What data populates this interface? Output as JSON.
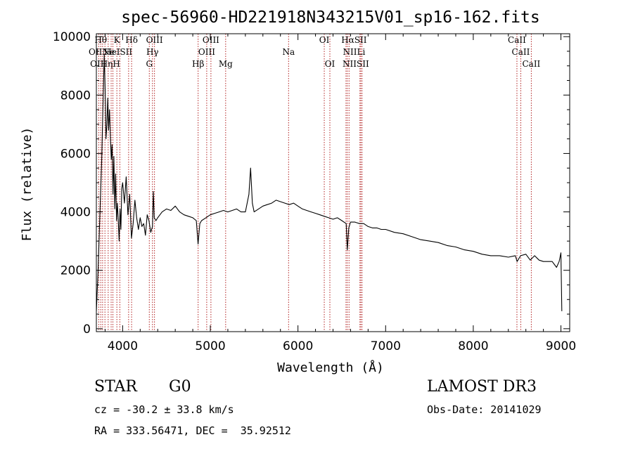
{
  "chart_data": {
    "type": "line",
    "title": "spec-56960-HD221918N343215V01_sp16-162.fits",
    "xlabel": "Wavelength (Å)",
    "ylabel": "Flux (relative)",
    "xlim": [
      3700,
      9100
    ],
    "ylim": [
      -100,
      10100
    ],
    "x_ticks": [
      4000,
      5000,
      6000,
      7000,
      8000,
      9000
    ],
    "x_tick_labels": [
      "4000",
      "5000",
      "6000",
      "7000",
      "8000",
      "9000"
    ],
    "y_ticks": [
      0,
      2000,
      4000,
      6000,
      8000,
      10000
    ],
    "y_tick_labels": [
      "0",
      "2000",
      "4000",
      "6000",
      "8000",
      "10000"
    ],
    "series": [
      {
        "x": [
          3700,
          3720,
          3740,
          3760,
          3780,
          3790,
          3800,
          3810,
          3820,
          3830,
          3840,
          3850,
          3860,
          3870,
          3880,
          3890,
          3900,
          3910,
          3920,
          3930,
          3940,
          3950,
          3960,
          3970,
          3980,
          3990,
          4000,
          4020,
          4040,
          4060,
          4080,
          4100,
          4120,
          4140,
          4160,
          4180,
          4200,
          4220,
          4240,
          4260,
          4280,
          4300,
          4320,
          4340,
          4350,
          4360,
          4380,
          4400,
          4450,
          4500,
          4550,
          4600,
          4650,
          4700,
          4750,
          4800,
          4840,
          4860,
          4880,
          4900,
          4950,
          5000,
          5050,
          5100,
          5150,
          5200,
          5250,
          5300,
          5350,
          5400,
          5440,
          5460,
          5480,
          5500,
          5550,
          5600,
          5650,
          5700,
          5750,
          5800,
          5850,
          5900,
          5950,
          6000,
          6050,
          6100,
          6150,
          6200,
          6250,
          6300,
          6350,
          6400,
          6450,
          6500,
          6550,
          6563,
          6580,
          6600,
          6650,
          6700,
          6750,
          6800,
          6850,
          6900,
          6950,
          7000,
          7100,
          7200,
          7300,
          7400,
          7500,
          7600,
          7700,
          7800,
          7900,
          8000,
          8100,
          8200,
          8300,
          8400,
          8480,
          8500,
          8540,
          8600,
          8650,
          8700,
          8750,
          8800,
          8850,
          8900,
          8950,
          8980,
          9000,
          9010
        ],
        "y": [
          600,
          2000,
          3900,
          5700,
          8200,
          9400,
          8200,
          6500,
          7000,
          7900,
          6800,
          7500,
          6600,
          5800,
          6300,
          4600,
          5900,
          4100,
          5300,
          3700,
          4300,
          3700,
          3000,
          4100,
          3400,
          4800,
          5000,
          4300,
          5200,
          3900,
          4600,
          3100,
          3600,
          4400,
          3800,
          3400,
          3800,
          3500,
          3600,
          3200,
          3900,
          3700,
          3300,
          3500,
          4700,
          3800,
          3700,
          3800,
          4000,
          4100,
          4050,
          4200,
          4000,
          3900,
          3850,
          3800,
          3700,
          2900,
          3600,
          3700,
          3800,
          3900,
          3950,
          4000,
          4050,
          4000,
          4050,
          4100,
          4000,
          4000,
          4600,
          5500,
          4300,
          4000,
          4100,
          4200,
          4250,
          4300,
          4400,
          4350,
          4300,
          4250,
          4300,
          4200,
          4100,
          4050,
          4000,
          3950,
          3900,
          3850,
          3800,
          3750,
          3800,
          3700,
          3600,
          2700,
          3450,
          3650,
          3650,
          3600,
          3600,
          3500,
          3450,
          3450,
          3400,
          3400,
          3300,
          3250,
          3150,
          3050,
          3000,
          2950,
          2850,
          2800,
          2700,
          2650,
          2550,
          2500,
          2500,
          2450,
          2500,
          2300,
          2500,
          2550,
          2350,
          2500,
          2350,
          2300,
          2300,
          2300,
          2100,
          2300,
          2600,
          600
        ]
      }
    ],
    "lines": [
      {
        "x": 3727,
        "label": "OII"
      },
      {
        "x": 3750,
        "label": "Hθ"
      },
      {
        "x": 3771,
        "label": "Hη"
      },
      {
        "x": 3798,
        "label": "Hζ"
      },
      {
        "x": 3835,
        "label": "Hη"
      },
      {
        "x": 3869,
        "label": "Ne"
      },
      {
        "x": 3889,
        "label": "HeI"
      },
      {
        "x": 3934,
        "label": "K"
      },
      {
        "x": 3968,
        "label": "H"
      },
      {
        "x": 4068,
        "label": "SII"
      },
      {
        "x": 4102,
        "label": "Hδ"
      },
      {
        "x": 4304,
        "label": "G"
      },
      {
        "x": 4340,
        "label": "Hγ"
      },
      {
        "x": 4363,
        "label": "OIII"
      },
      {
        "x": 4861,
        "label": "Hβ"
      },
      {
        "x": 4959,
        "label": "OIII"
      },
      {
        "x": 5007,
        "label": "OIII"
      },
      {
        "x": 5175,
        "label": "Mg"
      },
      {
        "x": 5893,
        "label": "Na"
      },
      {
        "x": 6300,
        "label": "OI"
      },
      {
        "x": 6364,
        "label": "OI"
      },
      {
        "x": 6548,
        "label": "NII"
      },
      {
        "x": 6563,
        "label": "Hα"
      },
      {
        "x": 6583,
        "label": "NII"
      },
      {
        "x": 6707,
        "label": "Li"
      },
      {
        "x": 6717,
        "label": "SII"
      },
      {
        "x": 6731,
        "label": "SII"
      },
      {
        "x": 8498,
        "label": "CaII"
      },
      {
        "x": 8542,
        "label": "CaII"
      },
      {
        "x": 8662,
        "label": "CaII"
      }
    ],
    "line_labels": [
      {
        "text": "Hθ",
        "x": 3750,
        "row": 1
      },
      {
        "text": "K",
        "x": 3934,
        "row": 1
      },
      {
        "text": "Hδ",
        "x": 4102,
        "row": 1
      },
      {
        "text": "OIII",
        "x": 4363,
        "row": 1
      },
      {
        "text": "OIII",
        "x": 5007,
        "row": 1
      },
      {
        "text": "OI",
        "x": 6300,
        "row": 1
      },
      {
        "text": "HαSII",
        "x": 6640,
        "row": 1
      },
      {
        "text": "CaII",
        "x": 8498,
        "row": 1
      },
      {
        "text": "OIINe",
        "x": 3760,
        "row": 2
      },
      {
        "text": "HeISII",
        "x": 3950,
        "row": 2
      },
      {
        "text": "Hγ",
        "x": 4340,
        "row": 2
      },
      {
        "text": "OIII",
        "x": 4959,
        "row": 2
      },
      {
        "text": "Na",
        "x": 5893,
        "row": 2
      },
      {
        "text": "NIILi",
        "x": 6640,
        "row": 2
      },
      {
        "text": "CaII",
        "x": 8542,
        "row": 2
      },
      {
        "text": "OIHηH",
        "x": 3800,
        "row": 3
      },
      {
        "text": "G",
        "x": 4304,
        "row": 3
      },
      {
        "text": "Hβ",
        "x": 4861,
        "row": 3
      },
      {
        "text": "Mg",
        "x": 5175,
        "row": 3
      },
      {
        "text": "OI",
        "x": 6364,
        "row": 3
      },
      {
        "text": "NIISII",
        "x": 6660,
        "row": 3
      },
      {
        "text": "CaII",
        "x": 8662,
        "row": 3
      }
    ],
    "legend": "none",
    "grid": false
  },
  "info": {
    "object_class": "STAR",
    "subclass": "G0",
    "survey": "LAMOST DR3",
    "cz": "cz = -30.2 ± 33.8 km/s",
    "obs_date": "Obs-Date: 20141029",
    "coords": "RA = 333.56471, DEC =  35.92512"
  },
  "colors": {
    "spectrum": "#000000",
    "line_markers": "#b22222",
    "background": "#ffffff"
  }
}
